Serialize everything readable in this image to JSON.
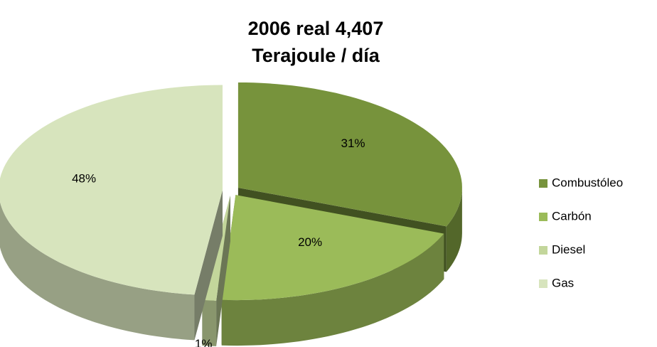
{
  "chart_data": {
    "type": "pie3d",
    "title": [
      "2006 real 4,407",
      "Terajoule / día"
    ],
    "categories": [
      "Combustóleo",
      "Carbón",
      "Diesel",
      "Gas"
    ],
    "values": [
      31,
      20,
      1,
      48
    ],
    "value_labels": [
      "31%",
      "20%",
      "1%",
      "48%"
    ],
    "colors": [
      "#77933c",
      "#9bbb59",
      "#c3d69b",
      "#d7e4bd"
    ],
    "legend": "right"
  }
}
